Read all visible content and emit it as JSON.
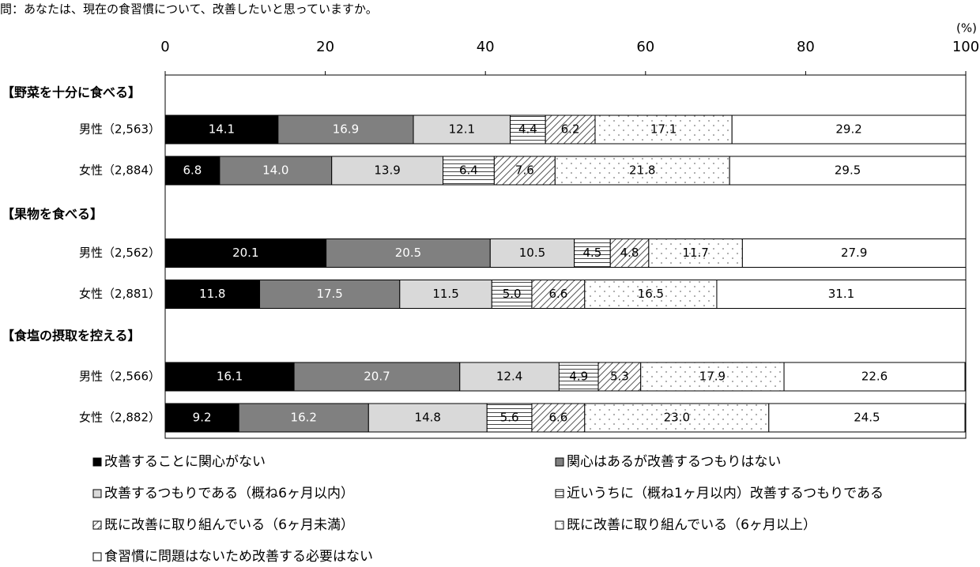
{
  "chart_data": {
    "type": "stacked-bar-horizontal",
    "title": "問：あなたは、現在の食習慣について、改善したいと思っていますか。",
    "unit_label": "(%)",
    "group_labels": [
      "【野菜を十分に食べる】",
      "【果物を食べる】",
      "【食塩の摂取を控える】"
    ],
    "categories": [
      "男性（2,563）",
      "女性（2,884）",
      "男性（2,562）",
      "女性（2,881）",
      "男性（2,566）",
      "女性（2,882）"
    ],
    "xlim": [
      0,
      100
    ],
    "xticks": [
      0,
      20,
      40,
      60,
      80,
      100
    ],
    "grid": false,
    "series": [
      {
        "name": "改善することに関心がない",
        "color": "#000000",
        "pattern": "none",
        "label_color": "#ffffff",
        "values": [
          14.1,
          6.8,
          20.1,
          11.8,
          16.1,
          9.2
        ],
        "value_labels": [
          "14.1",
          "6.8",
          "20.1",
          "11.8",
          "16.1",
          "9.2"
        ]
      },
      {
        "name": "関心はあるが改善するつもりはない",
        "color": "#808080",
        "pattern": "none",
        "label_color": "#ffffff",
        "values": [
          16.9,
          14.0,
          20.5,
          17.5,
          20.7,
          16.2
        ],
        "value_labels": [
          "16.9",
          "14.0",
          "20.5",
          "17.5",
          "20.7",
          "16.2"
        ]
      },
      {
        "name": "改善するつもりである（概ね6ヶ月以内）",
        "color": "#d9d9d9",
        "pattern": "none",
        "label_color": "#000000",
        "values": [
          12.1,
          13.9,
          10.5,
          11.5,
          12.4,
          14.8
        ],
        "value_labels": [
          "12.1",
          "13.9",
          "10.5",
          "11.5",
          "12.4",
          "14.8"
        ]
      },
      {
        "name": "近いうちに（概ね1ヶ月以内）改善するつもりである",
        "color": "#ffffff",
        "pattern": "hlines",
        "label_color": "#000000",
        "values": [
          4.4,
          6.4,
          4.5,
          5.0,
          4.9,
          5.6
        ],
        "value_labels": [
          "4.4",
          "6.4",
          "4.5",
          "5.0",
          "4.9",
          "5.6"
        ]
      },
      {
        "name": "既に改善に取り組んでいる（6ヶ月未満）",
        "color": "#ffffff",
        "pattern": "diagonal",
        "label_color": "#000000",
        "values": [
          6.2,
          7.6,
          4.8,
          6.6,
          5.3,
          6.6
        ],
        "value_labels": [
          "6.2",
          "7.6",
          "4.8",
          "6.6",
          "5.3",
          "6.6"
        ]
      },
      {
        "name": "既に改善に取り組んでいる（6ヶ月以上）",
        "color": "#ffffff",
        "pattern": "dots",
        "label_color": "#000000",
        "values": [
          17.1,
          21.8,
          11.7,
          16.5,
          17.9,
          23.0
        ],
        "value_labels": [
          "17.1",
          "21.8",
          "11.7",
          "16.5",
          "17.9",
          "23.0"
        ]
      },
      {
        "name": "食習慣に問題はないため改善する必要はない",
        "color": "#ffffff",
        "pattern": "none",
        "label_color": "#000000",
        "values": [
          29.2,
          29.5,
          27.9,
          31.1,
          22.6,
          24.5
        ],
        "value_labels": [
          "29.2",
          "29.5",
          "27.9",
          "31.1",
          "22.6",
          "24.5"
        ]
      }
    ]
  }
}
